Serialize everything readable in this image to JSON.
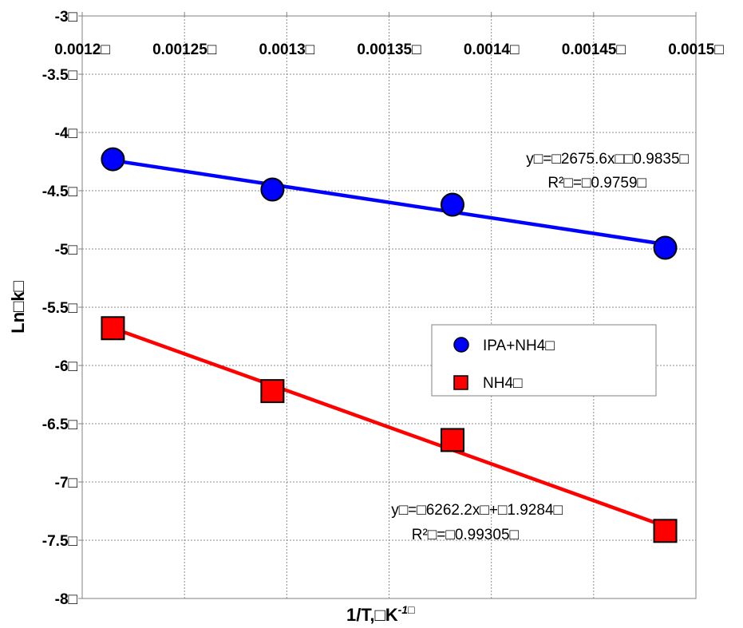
{
  "chart_data": {
    "type": "scatter",
    "title": "",
    "xlabel": "1/T,□K",
    "xlabel_sup": "-1□",
    "ylabel": "Ln□k□",
    "xlim": [
      0.0012,
      0.0015
    ],
    "ylim": [
      -8,
      -3
    ],
    "x_axis_position": "top",
    "grid": true,
    "x_ticks": [
      0.0012,
      0.00125,
      0.0013,
      0.00135,
      0.0014,
      0.00145,
      0.0015
    ],
    "x_tick_labels": [
      "0.0012□",
      "0.00125□",
      "0.0013□",
      "0.00135□",
      "0.0014□",
      "0.00145□",
      "0.0015□"
    ],
    "y_ticks": [
      -3,
      -3.5,
      -4,
      -4.5,
      -5,
      -5.5,
      -6,
      -6.5,
      -7,
      -7.5,
      -8
    ],
    "y_tick_labels": [
      "-3□",
      "-3.5□",
      "-4□",
      "-4.5□",
      "-5□",
      "-5.5□",
      "-6□",
      "-6.5□",
      "-7□",
      "-7.5□",
      "-8□"
    ],
    "legend_position": "right",
    "series": [
      {
        "name": "IPA+NH4□",
        "marker": "circle",
        "color": "#0000ff",
        "x": [
          0.001215,
          0.001293,
          0.001381,
          0.001485
        ],
        "y": [
          -4.23,
          -4.49,
          -4.62,
          -4.99
        ],
        "trendline": {
          "x": [
            0.001215,
            0.001485
          ],
          "y": [
            -4.24,
            -4.96
          ]
        },
        "equation": "y□=□2675.6x□□0.9835□",
        "r2": "R²□=□0.9759□"
      },
      {
        "name": "NH4□",
        "marker": "square",
        "color": "#ff0000",
        "x": [
          0.001215,
          0.001293,
          0.001381,
          0.001485
        ],
        "y": [
          -5.68,
          -6.22,
          -6.64,
          -7.42
        ],
        "trendline": {
          "x": [
            0.001215,
            0.001485
          ],
          "y": [
            -5.68,
            -7.38
          ]
        },
        "equation": "y□=□6262.2x□+□1.9284□",
        "r2": "R²□=□0.99305□"
      }
    ]
  }
}
